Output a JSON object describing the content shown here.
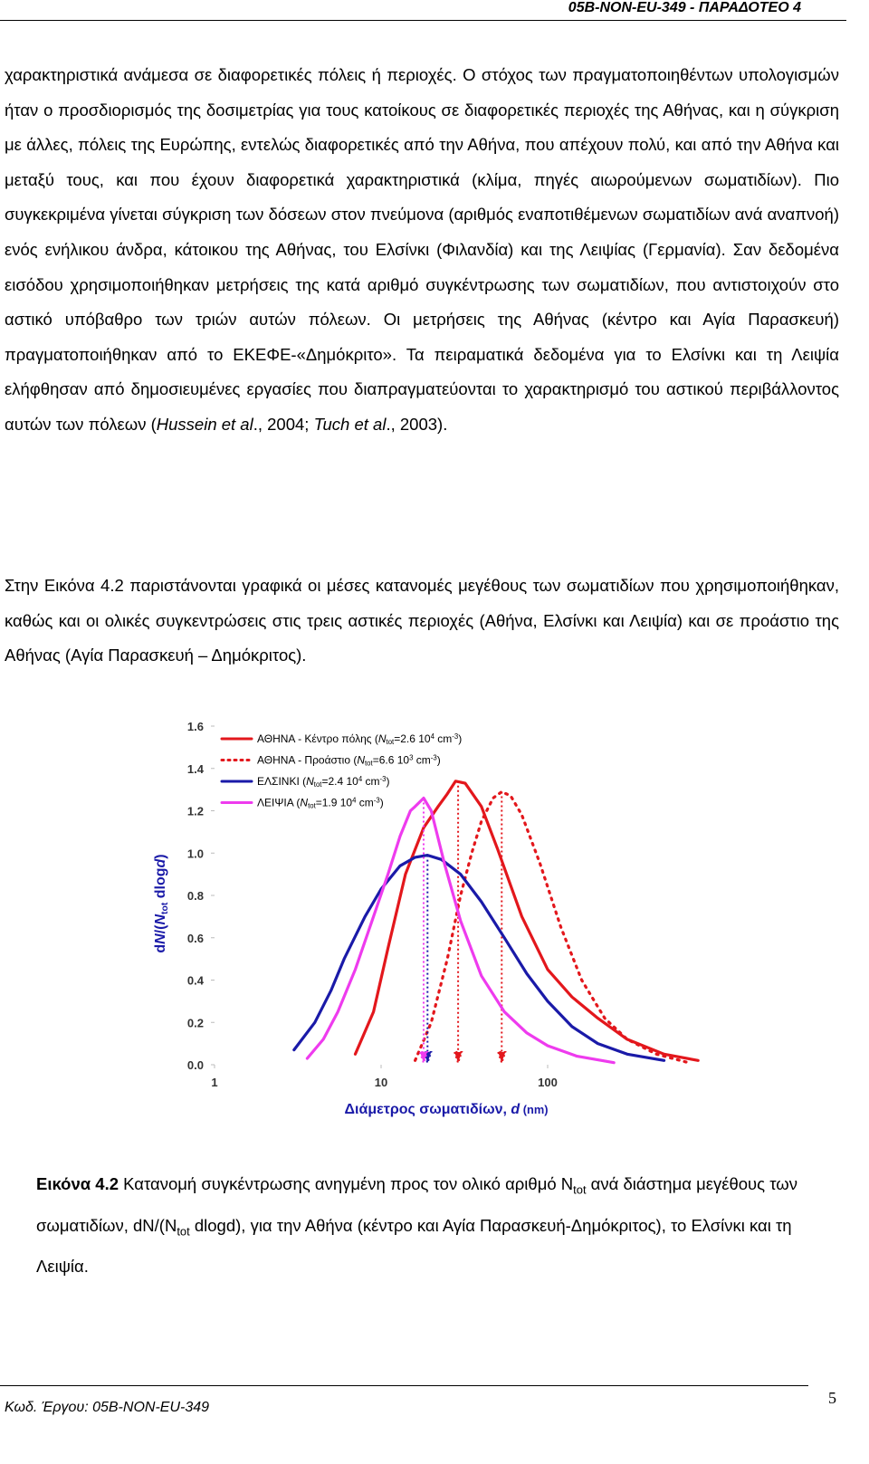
{
  "header": {
    "title": "05B-NON-EU-349 - ΠΑΡΑΔΟΤΕΟ 4"
  },
  "paragraphs": [
    [
      {
        "text": "χαρακτηριστικά ανάμεσα σε διαφορετικές πόλεις ή περιοχές. Ο στόχος των πραγματοποιηθέντων υπολογισμών ήταν ο προσδιορισμός της δοσιμετρίας για τους κατοίκους σε διαφορετικές περιοχές της Αθήνας, και η σύγκριση με άλλες, πόλεις της Ευρώπης, εντελώς διαφορετικές από την Αθήνα, που απέχουν πολύ, και από την Αθήνα και μεταξύ τους, και που έχουν διαφορετικά χαρακτηριστικά (κλίμα, πηγές αιωρούμενων σωματιδίων). Πιο συγκεκριμένα γίνεται σύγκριση των δόσεων στον πνεύμονα (αριθμός εναποτιθέμενων σωματιδίων ανά αναπνοή) ενός ενήλικου άνδρα, κάτοικου της Αθήνας, του Ελσίνκι (Φιλανδία) και της Λειψίας (Γερμανία). Σαν δεδομένα εισόδου χρησιμοποιήθηκαν μετρήσεις της κατά αριθμό συγκέντρωσης των σωματιδίων, που αντιστοιχούν στο αστικό υπόβαθρο των τριών αυτών πόλεων. Οι μετρήσεις της Αθήνας (κέντρο και Αγία Παρασκευή) πραγματοποιήθηκαν από το ΕΚΕΦΕ-«Δημόκριτο». Τα πειραματικά δεδομένα για το Ελσίνκι και τη Λειψία ελήφθησαν από δημοσιευμένες εργασίες που διαπραγματεύονται το χαρακτηρισμό του αστικού περιβάλλοντος αυτών των πόλεων ("
      },
      {
        "text": "Hussein et al",
        "style": "italic"
      },
      {
        "text": "., 2004; "
      },
      {
        "text": "Tuch et al",
        "style": "italic"
      },
      {
        "text": "., 2003)."
      }
    ],
    [
      {
        "text": "Στην Εικόνα 4.2 παριστάνονται γραφικά οι μέσες κατανομές μεγέθους των σωματιδίων που χρησιμοποιήθηκαν, καθώς και οι ολικές συγκεντρώσεις στις τρεις αστικές περιοχές (Αθήνα, Ελσίνκι και Λειψία) και σε προάστιο της Αθήνας (Αγία Παρασκευή – Δημόκριτος)."
      }
    ]
  ],
  "chart_data": {
    "type": "line",
    "xscale": "log",
    "xlim": [
      1,
      1000
    ],
    "xticks": [
      1,
      10,
      100
    ],
    "ylim": [
      0,
      1.6
    ],
    "yticks": [
      {
        "value": 0,
        "label": "0.0"
      },
      0.2,
      0.4,
      0.6,
      0.8,
      {
        "value": 1,
        "label": "1.0"
      },
      1.2,
      1.4,
      1.6
    ],
    "xlabel": [
      {
        "text": "Διάμετρος σωματιδίων, "
      },
      {
        "text": "d",
        "style": "italic"
      },
      {
        "text": " (nm)",
        "style": "small"
      }
    ],
    "ylabel": [
      {
        "text": "d"
      },
      {
        "text": "N",
        "style": "italic"
      },
      {
        "text": "/("
      },
      {
        "text": "N",
        "style": "italic"
      },
      {
        "text": "tot",
        "style": "sub"
      },
      {
        "text": " dlog"
      },
      {
        "text": "d",
        "style": "italic"
      },
      {
        "text": ")"
      }
    ],
    "series": [
      {
        "name": [
          {
            "text": "ΑΘΗΝΑ - Κέντρο πόλης ("
          },
          {
            "text": "N",
            "style": "italic"
          },
          {
            "text": "tot",
            "style": "sub"
          },
          {
            "text": "=2.6 10"
          },
          {
            "text": "4",
            "style": "sup"
          },
          {
            "text": " cm"
          },
          {
            "text": "-3",
            "style": "sup"
          },
          {
            "text": ")"
          }
        ],
        "color": "#e3171c",
        "dash": "solid",
        "arrow_x": 29,
        "x": [
          7,
          9,
          11,
          14,
          18,
          22,
          25,
          28,
          32,
          40,
          50,
          70,
          100,
          140,
          200,
          300,
          500,
          800
        ],
        "values": [
          0.05,
          0.25,
          0.55,
          0.9,
          1.12,
          1.22,
          1.28,
          1.34,
          1.33,
          1.22,
          1.02,
          0.7,
          0.45,
          0.32,
          0.22,
          0.12,
          0.05,
          0.02
        ]
      },
      {
        "name": [
          {
            "text": "ΑΘΗΝΑ - Προάστιο ("
          },
          {
            "text": "N",
            "style": "italic"
          },
          {
            "text": "tot",
            "style": "sub"
          },
          {
            "text": "=6.6 10"
          },
          {
            "text": "3",
            "style": "sup"
          },
          {
            "text": " cm"
          },
          {
            "text": "-3",
            "style": "sup"
          },
          {
            "text": ")"
          }
        ],
        "color": "#e3171c",
        "dash": "dotted",
        "arrow_x": 53,
        "x": [
          16,
          20,
          25,
          30,
          35,
          40,
          47,
          53,
          60,
          70,
          90,
          120,
          160,
          220,
          300,
          450,
          700
        ],
        "values": [
          0.02,
          0.2,
          0.5,
          0.8,
          1.0,
          1.15,
          1.26,
          1.29,
          1.27,
          1.18,
          0.95,
          0.65,
          0.4,
          0.22,
          0.12,
          0.05,
          0.01
        ]
      },
      {
        "name": [
          {
            "text": "ΕΛΣΙΝΚΙ ("
          },
          {
            "text": "N",
            "style": "italic"
          },
          {
            "text": "tot",
            "style": "sub"
          },
          {
            "text": "=2.4 10"
          },
          {
            "text": "4",
            "style": "sup"
          },
          {
            "text": " cm"
          },
          {
            "text": "-3",
            "style": "sup"
          },
          {
            "text": ")"
          }
        ],
        "color": "#1a1aa8",
        "dash": "solid",
        "arrow_x": 19,
        "x": [
          3,
          4,
          5,
          6,
          8,
          10,
          13,
          16,
          19,
          23,
          30,
          40,
          55,
          75,
          100,
          140,
          200,
          300,
          500
        ],
        "values": [
          0.07,
          0.2,
          0.35,
          0.5,
          0.7,
          0.83,
          0.94,
          0.98,
          0.99,
          0.97,
          0.9,
          0.77,
          0.6,
          0.43,
          0.3,
          0.18,
          0.1,
          0.05,
          0.02
        ]
      },
      {
        "name": [
          {
            "text": "ΛΕΙΨΙΑ ("
          },
          {
            "text": "N",
            "style": "italic"
          },
          {
            "text": "tot",
            "style": "sub"
          },
          {
            "text": "=1.9 10"
          },
          {
            "text": "4",
            "style": "sup"
          },
          {
            "text": " cm"
          },
          {
            "text": "-3",
            "style": "sup"
          },
          {
            "text": ")"
          }
        ],
        "color": "#ee3bee",
        "dash": "solid",
        "arrow_x": 18,
        "x": [
          3.6,
          4.5,
          5.5,
          7,
          9,
          11,
          13,
          15,
          16,
          18,
          20,
          24,
          30,
          40,
          55,
          75,
          100,
          150,
          250
        ],
        "values": [
          0.03,
          0.12,
          0.25,
          0.45,
          0.7,
          0.9,
          1.08,
          1.2,
          1.22,
          1.26,
          1.2,
          0.95,
          0.68,
          0.42,
          0.25,
          0.15,
          0.09,
          0.04,
          0.01
        ]
      }
    ]
  },
  "caption": [
    {
      "text": "Εικόνα 4.2",
      "style": "bold"
    },
    {
      "text": " Κατανομή συγκέντρωσης ανηγμένη προς τον ολικό αριθμό N"
    },
    {
      "text": "tot",
      "style": "sub"
    },
    {
      "text": " ανά διάστημα μεγέθους των σωματιδίων, dN/(N"
    },
    {
      "text": "tot",
      "style": "sub"
    },
    {
      "text": " dlogd), για την Αθήνα (κέντρο και Αγία Παρασκευή-Δημόκριτος), το Ελσίνκι και τη Λειψία."
    }
  ],
  "footer": {
    "code": "Κωδ. Έργου: 05B-NON-EU-349",
    "page": "5"
  }
}
